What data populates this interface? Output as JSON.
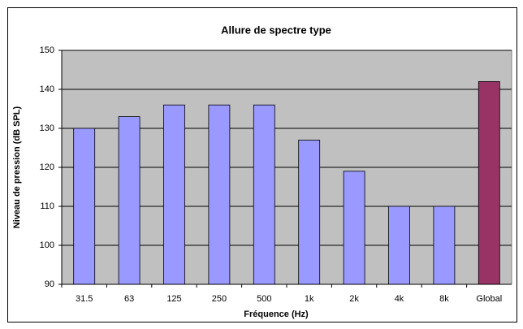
{
  "chart_data": {
    "type": "bar",
    "title": "Allure de spectre type",
    "x_label": "Fréquence (Hz)",
    "y_label": "Niveau de pression (dB SPL)",
    "categories": [
      "31.5",
      "63",
      "125",
      "250",
      "500",
      "1k",
      "2k",
      "4k",
      "8k",
      "Global"
    ],
    "values": [
      130,
      133,
      136,
      136,
      136,
      127,
      119,
      110,
      110,
      142
    ],
    "colors": [
      "#9999ff",
      "#9999ff",
      "#9999ff",
      "#9999ff",
      "#9999ff",
      "#9999ff",
      "#9999ff",
      "#9999ff",
      "#9999ff",
      "#993366"
    ],
    "ylim": [
      90,
      150
    ],
    "yticks": [
      90,
      100,
      110,
      120,
      130,
      140,
      150
    ],
    "grid": true
  }
}
